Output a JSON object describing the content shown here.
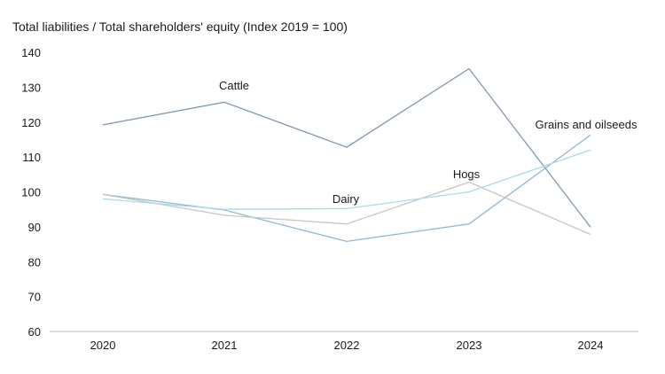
{
  "chart_data": {
    "type": "line",
    "title": "Total liabilities / Total shareholders' equity (Index 2019 = 100)",
    "xlabel": "",
    "ylabel": "",
    "x": [
      "2020",
      "2021",
      "2022",
      "2023",
      "2024"
    ],
    "ylim": [
      60,
      140
    ],
    "yticks": [
      60,
      70,
      80,
      90,
      100,
      110,
      120,
      130,
      140
    ],
    "grid": false,
    "legend": "none",
    "series": [
      {
        "name": "Cattle",
        "color": "#7f97b2",
        "values": [
          119.2,
          125.7,
          112.8,
          135.3,
          89.9
        ]
      },
      {
        "name": "Grains and oilseeds",
        "color": "#8fb8d6",
        "values": [
          99.3,
          94.8,
          85.8,
          90.8,
          116.3
        ]
      },
      {
        "name": "Hogs",
        "color": "#c9c6bd",
        "values": [
          99.3,
          93.3,
          90.8,
          102.8,
          87.8
        ]
      },
      {
        "name": "Dairy",
        "color": "#a8dbe8",
        "values": [
          98.0,
          95.0,
          95.2,
          100.0,
          112.0
        ]
      }
    ]
  }
}
